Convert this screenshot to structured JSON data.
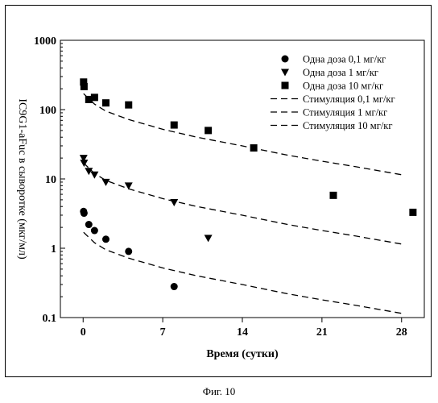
{
  "figure_caption": "Фиг. 10",
  "chart_data": {
    "type": "scatter",
    "title": "",
    "xlabel": "Время (сутки)",
    "ylabel": "IC9G1-aFuc в сыворотке (мкг/мл)",
    "xlim": [
      -2,
      30
    ],
    "ylim": [
      0.1,
      1000
    ],
    "yscale": "log",
    "x_ticks": [
      0,
      7,
      14,
      21,
      28
    ],
    "x_tick_labels": [
      "0",
      "7",
      "14",
      "21",
      "28"
    ],
    "y_ticks": [
      0.1,
      1,
      10,
      100,
      1000
    ],
    "y_tick_labels": [
      "0.1",
      "1",
      "10",
      "100",
      "1000"
    ],
    "grid": false,
    "legend_position": "top-right",
    "series": [
      {
        "name": "Одна доза 0,1 мг/кг",
        "kind": "scatter",
        "marker": "circle",
        "color": "#000000",
        "points": [
          [
            0.04,
            3.4
          ],
          [
            0.08,
            3.2
          ],
          [
            0.5,
            2.2
          ],
          [
            1,
            1.8
          ],
          [
            2,
            1.35
          ],
          [
            4,
            0.9
          ],
          [
            8,
            0.28
          ]
        ]
      },
      {
        "name": "Одна доза 1 мг/кг",
        "kind": "scatter",
        "marker": "triangle-down",
        "color": "#000000",
        "points": [
          [
            0.04,
            20
          ],
          [
            0.08,
            17
          ],
          [
            0.5,
            13
          ],
          [
            1,
            11.5
          ],
          [
            2,
            9
          ],
          [
            4,
            8
          ],
          [
            8,
            4.6
          ],
          [
            11,
            1.4
          ]
        ]
      },
      {
        "name": "Одна доза 10 мг/кг",
        "kind": "scatter",
        "marker": "square",
        "color": "#000000",
        "points": [
          [
            0.04,
            250
          ],
          [
            0.08,
            215
          ],
          [
            0.5,
            140
          ],
          [
            1,
            150
          ],
          [
            2,
            125
          ],
          [
            4,
            117
          ],
          [
            8,
            60
          ],
          [
            11,
            50
          ],
          [
            15,
            28
          ],
          [
            22,
            5.8
          ],
          [
            29,
            3.3
          ]
        ]
      },
      {
        "name": "Стимуляция 0,1 мг/кг",
        "kind": "line",
        "dash": "dashed",
        "color": "#000000",
        "points": [
          [
            0.04,
            1.7
          ],
          [
            1,
            1.2
          ],
          [
            2,
            0.95
          ],
          [
            4,
            0.72
          ],
          [
            7,
            0.52
          ],
          [
            10,
            0.4
          ],
          [
            14,
            0.3
          ],
          [
            18,
            0.22
          ],
          [
            21,
            0.18
          ],
          [
            24,
            0.15
          ],
          [
            28,
            0.115
          ]
        ]
      },
      {
        "name": "Стимуляция 1 мг/кг",
        "kind": "line",
        "dash": "dashed",
        "color": "#000000",
        "points": [
          [
            0.04,
            17
          ],
          [
            1,
            12
          ],
          [
            2,
            9.5
          ],
          [
            4,
            7.2
          ],
          [
            7,
            5.2
          ],
          [
            10,
            4
          ],
          [
            14,
            3
          ],
          [
            18,
            2.2
          ],
          [
            21,
            1.8
          ],
          [
            24,
            1.5
          ],
          [
            28,
            1.15
          ]
        ]
      },
      {
        "name": "Стимуляция 10 мг/кг",
        "kind": "line",
        "dash": "dashed",
        "color": "#000000",
        "points": [
          [
            0.04,
            170
          ],
          [
            1,
            120
          ],
          [
            2,
            95
          ],
          [
            4,
            72
          ],
          [
            7,
            52
          ],
          [
            10,
            40
          ],
          [
            14,
            30
          ],
          [
            18,
            22
          ],
          [
            21,
            18
          ],
          [
            24,
            15
          ],
          [
            28,
            11.5
          ]
        ]
      }
    ]
  }
}
